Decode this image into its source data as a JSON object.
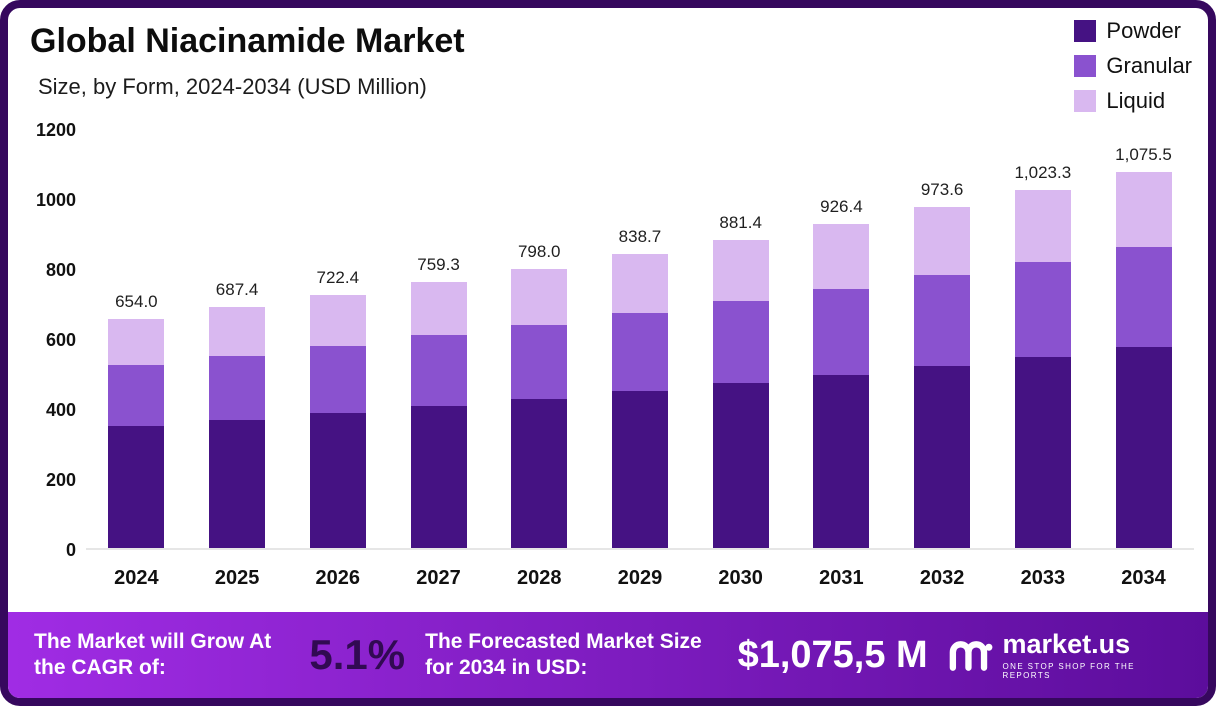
{
  "header": {
    "title": "Global Niacinamide Market",
    "subtitle": "Size, by Form, 2024-2034 (USD Million)"
  },
  "chart_data": {
    "type": "bar",
    "stacked": true,
    "title": "Global Niacinamide Market",
    "subtitle": "Size, by Form, 2024-2034 (USD Million)",
    "categories": [
      "2024",
      "2025",
      "2026",
      "2027",
      "2028",
      "2029",
      "2030",
      "2031",
      "2032",
      "2033",
      "2034"
    ],
    "series": [
      {
        "name": "Powder",
        "color": "#451283",
        "values": [
          349.0,
          367.0,
          386.0,
          405.3,
          426.0,
          448.0,
          470.4,
          494.4,
          520.0,
          546.3,
          574.5
        ]
      },
      {
        "name": "Granular",
        "color": "#8a52cf",
        "values": [
          175.0,
          183.0,
          192.4,
          202.0,
          212.0,
          223.0,
          235.0,
          246.0,
          259.6,
          272.0,
          286.0
        ]
      },
      {
        "name": "Liquid",
        "color": "#d9b8f0",
        "values": [
          130.0,
          137.4,
          144.0,
          152.0,
          160.0,
          167.7,
          176.0,
          186.0,
          194.0,
          205.0,
          215.0
        ]
      }
    ],
    "totals": [
      654.0,
      687.4,
      722.4,
      759.3,
      798.0,
      838.7,
      881.4,
      926.4,
      973.6,
      1023.3,
      1075.5
    ],
    "total_labels": [
      "654.0",
      "687.4",
      "722.4",
      "759.3",
      "798.0",
      "838.7",
      "881.4",
      "926.4",
      "973.6",
      "1,023.3",
      "1,075.5"
    ],
    "ylim": [
      0,
      1200
    ],
    "yticks": [
      0,
      200,
      400,
      600,
      800,
      1000,
      1200
    ],
    "grid": false,
    "legend_position": "top-right"
  },
  "footer": {
    "cagr_label": "The Market will Grow At the CAGR of:",
    "cagr_value": "5.1%",
    "cagr_value_color": "#310a52",
    "forecast_label": "The Forecasted Market Size for 2034 in USD:",
    "forecast_value": "$1,075,5 M",
    "brand": "market.us",
    "brand_tagline": "ONE STOP SHOP FOR THE REPORTS",
    "bg_from": "#a02ce4",
    "bg_to": "#5c0d9c"
  }
}
